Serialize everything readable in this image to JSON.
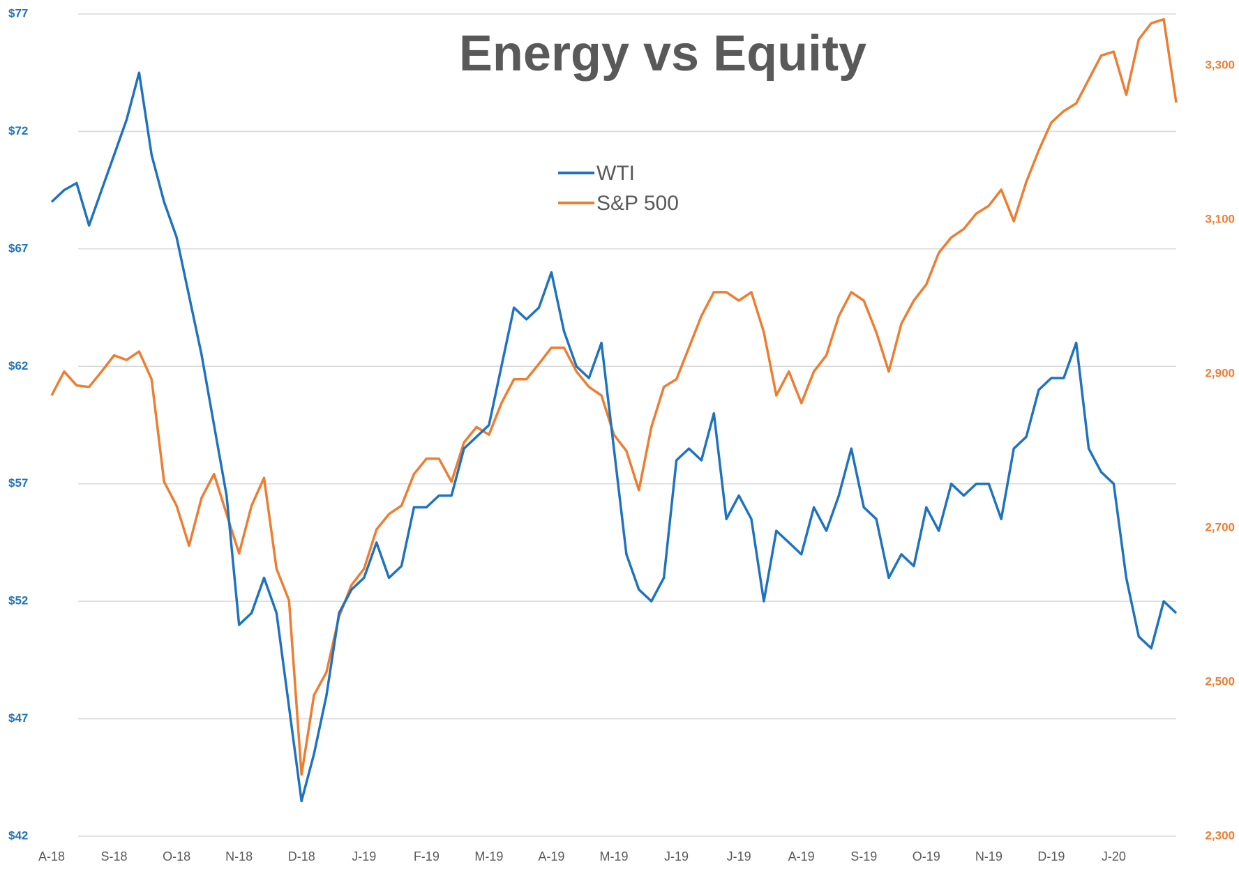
{
  "chart_data": {
    "type": "line",
    "title": "Energy vs Equity",
    "categories": [
      "A-18",
      null,
      null,
      null,
      null,
      "S-18",
      null,
      null,
      null,
      null,
      "O-18",
      null,
      null,
      null,
      null,
      "N-18",
      null,
      null,
      null,
      null,
      "D-18",
      null,
      null,
      null,
      null,
      "J-19",
      null,
      null,
      null,
      null,
      "F-19",
      null,
      null,
      null,
      null,
      "M-19",
      null,
      null,
      null,
      null,
      "A-19",
      null,
      null,
      null,
      null,
      "M-19",
      null,
      null,
      null,
      null,
      "J-19",
      null,
      null,
      null,
      null,
      "J-19",
      null,
      null,
      null,
      null,
      "A-19",
      null,
      null,
      null,
      null,
      "S-19",
      null,
      null,
      null,
      null,
      "O-19",
      null,
      null,
      null,
      null,
      "N-19",
      null,
      null,
      null,
      null,
      "D-19",
      null,
      null,
      null,
      null,
      "J-20",
      null,
      null,
      null,
      null,
      null
    ],
    "series": [
      {
        "name": "WTI",
        "color": "#1f73be",
        "axis": "y",
        "values": [
          69.0,
          69.5,
          69.8,
          68.0,
          69.5,
          71.0,
          72.5,
          74.5,
          71.0,
          69.0,
          67.5,
          65.0,
          62.5,
          59.5,
          56.5,
          51.0,
          51.5,
          53.0,
          51.5,
          47.5,
          43.5,
          45.5,
          48.0,
          51.5,
          52.5,
          53.0,
          54.5,
          53.0,
          53.5,
          56.0,
          56.0,
          56.5,
          56.5,
          58.5,
          59.0,
          59.5,
          62.0,
          64.5,
          64.0,
          64.5,
          66.0,
          63.5,
          62.0,
          61.5,
          63.0,
          58.5,
          54.0,
          52.5,
          52.0,
          53.0,
          58.0,
          58.5,
          58.0,
          60.0,
          55.5,
          56.5,
          55.5,
          52.0,
          55.0,
          54.5,
          54.0,
          56.0,
          55.0,
          56.5,
          58.5,
          56.0,
          55.5,
          53.0,
          54.0,
          53.5,
          56.0,
          55.0,
          57.0,
          56.5,
          57.0,
          57.0,
          55.5,
          58.5,
          59.0,
          61.0,
          61.5,
          61.5,
          63.0,
          58.5,
          57.5,
          57.0,
          53.0,
          50.5,
          50.0,
          52.0,
          51.5
        ]
      },
      {
        "name": "S&P 500",
        "color": "#ed7d31",
        "axis": "y2",
        "values": [
          2872,
          2903,
          2885,
          2883,
          2903,
          2924,
          2918,
          2929,
          2893,
          2760,
          2729,
          2677,
          2739,
          2770,
          2718,
          2667,
          2729,
          2765,
          2647,
          2606,
          2380,
          2483,
          2513,
          2585,
          2626,
          2647,
          2698,
          2718,
          2729,
          2770,
          2790,
          2790,
          2760,
          2811,
          2831,
          2821,
          2862,
          2893,
          2893,
          2913,
          2934,
          2934,
          2903,
          2883,
          2872,
          2821,
          2800,
          2749,
          2831,
          2883,
          2893,
          2934,
          2975,
          3006,
          3006,
          2995,
          3006,
          2954,
          2872,
          2903,
          2862,
          2903,
          2924,
          2975,
          3006,
          2995,
          2954,
          2903,
          2965,
          2995,
          3016,
          3057,
          3077,
          3088,
          3108,
          3118,
          3139,
          3098,
          3149,
          3190,
          3226,
          3241,
          3251,
          3282,
          3313,
          3318,
          3262,
          3334,
          3355,
          3360,
          3252
        ]
      }
    ],
    "ylim": [
      42,
      77
    ],
    "yticks": [
      {
        "value": 42,
        "label": "$42"
      },
      {
        "value": 47,
        "label": "$47"
      },
      {
        "value": 52,
        "label": "$52"
      },
      {
        "value": 57,
        "label": "$57"
      },
      {
        "value": 62,
        "label": "$62"
      },
      {
        "value": 67,
        "label": "$67"
      },
      {
        "value": 72,
        "label": "$72"
      },
      {
        "value": 77,
        "label": "$77"
      }
    ],
    "y2lim": [
      2300,
      3367
    ],
    "y2ticks": [
      {
        "value": 2300,
        "label": "2,300"
      },
      {
        "value": 2500,
        "label": "2,500"
      },
      {
        "value": 2700,
        "label": "2,700"
      },
      {
        "value": 2900,
        "label": "2,900"
      },
      {
        "value": 3100,
        "label": "3,100"
      },
      {
        "value": 3300,
        "label": "3,300"
      }
    ],
    "grid": true
  }
}
